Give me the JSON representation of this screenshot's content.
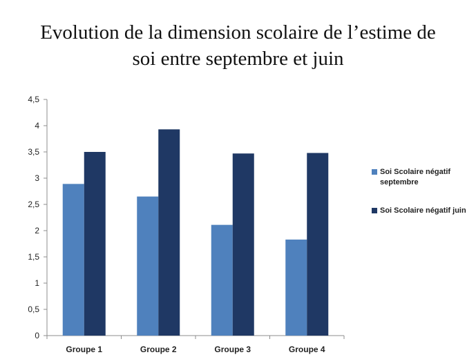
{
  "title": {
    "line1": "Evolution de la dimension scolaire de l’estime de",
    "line2": "soi entre septembre et juin"
  },
  "chart_data": {
    "type": "bar",
    "categories": [
      "Groupe 1",
      "Groupe 2",
      "Groupe 3",
      "Groupe 4"
    ],
    "series": [
      {
        "name": "Soi Scolaire négatif septembre",
        "color": "#4f81bd",
        "values": [
          2.89,
          2.65,
          2.11,
          1.83
        ]
      },
      {
        "name": "Soi Scolaire négatif juin",
        "color": "#1f3864",
        "values": [
          3.5,
          3.93,
          3.47,
          3.48
        ]
      }
    ],
    "ylim": [
      0,
      4.5
    ],
    "yticks": [
      "0",
      "0,5",
      "1",
      "1,5",
      "2",
      "2,5",
      "3",
      "3,5",
      "4",
      "4,5"
    ],
    "grid": false,
    "legend_position": "right"
  },
  "legend": {
    "items": [
      {
        "label_line1": "Soi Scolaire négatif",
        "label_line2": "septembre",
        "color": "#4f81bd"
      },
      {
        "label_line1": "Soi Scolaire négatif juin",
        "label_line2": "",
        "color": "#1f3864"
      }
    ]
  }
}
